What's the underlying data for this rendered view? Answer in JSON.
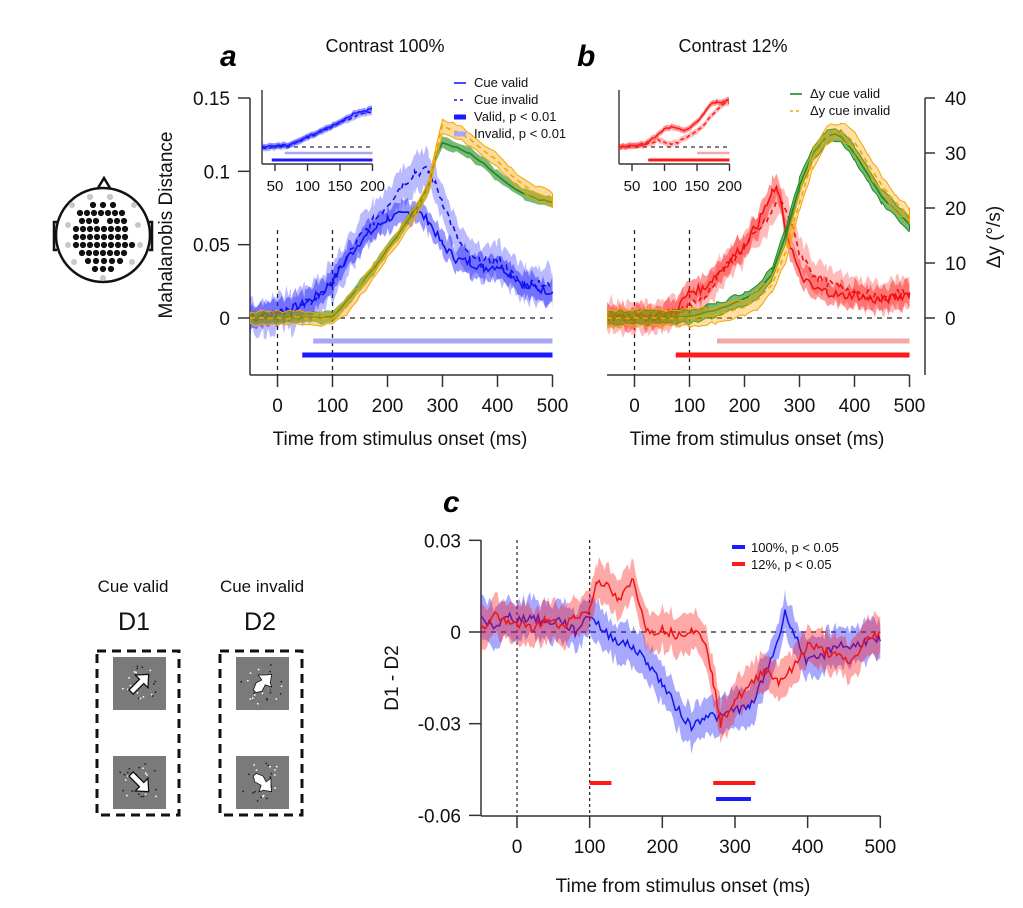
{
  "figure": {
    "panel_letters": [
      "a",
      "b",
      "c"
    ],
    "stimulus_schematic": {
      "columns": [
        {
          "condition": "Cue valid",
          "label": "D1"
        },
        {
          "condition": "Cue invalid",
          "label": "D2"
        }
      ]
    },
    "head_icon": "eeg-electrode-montage-icon"
  },
  "colors": {
    "valid_100": "#1a1aff",
    "invalid_100_sig": "#a7a7f5",
    "valid_12": "#ff1a1a",
    "invalid_12_sig": "#f5a7a7",
    "dy_valid": "#1e8a1e",
    "dy_invalid": "#f5a500"
  },
  "chart_data": [
    {
      "panel": "a",
      "type": "line",
      "title": "Contrast 100%",
      "xlabel": "Time from stimulus onset (ms)",
      "ylabel": "Mahalanobis Distance",
      "ylabel_right": "",
      "xlim": [
        -50,
        500
      ],
      "ylim": [
        -0.08,
        0.15
      ],
      "xticks": [
        0,
        100,
        200,
        300,
        400,
        500
      ],
      "xtick_labels": [
        "0",
        "100",
        "200",
        "300",
        "400",
        "500"
      ],
      "yticks": [
        0,
        0.05,
        0.1,
        0.15
      ],
      "ytick_labels": [
        "0",
        "0.05",
        "0.1",
        "0.15"
      ],
      "vlines": [
        0,
        100
      ],
      "hline": 0,
      "legend": [
        {
          "label": "Cue valid",
          "style": "solid"
        },
        {
          "label": "Cue invalid",
          "style": "dashed"
        },
        {
          "label": "Valid, p < 0.01",
          "style": "bar"
        },
        {
          "label": "Invalid, p < 0.01",
          "style": "bar-light"
        }
      ],
      "legend_position": "top-right",
      "series": [
        {
          "name": "Cue valid",
          "axis": "left",
          "x": [
            -50,
            -25,
            0,
            25,
            50,
            75,
            100,
            125,
            150,
            175,
            200,
            225,
            250,
            275,
            300,
            325,
            350,
            375,
            400,
            425,
            450,
            475,
            500
          ],
          "values": [
            0.001,
            0.002,
            0.004,
            0.006,
            0.01,
            0.016,
            0.025,
            0.04,
            0.052,
            0.06,
            0.068,
            0.07,
            0.074,
            0.066,
            0.05,
            0.04,
            0.038,
            0.034,
            0.036,
            0.03,
            0.022,
            0.02,
            0.018
          ]
        },
        {
          "name": "Cue invalid",
          "axis": "left",
          "x": [
            -50,
            -25,
            0,
            25,
            50,
            75,
            100,
            125,
            150,
            175,
            200,
            225,
            250,
            275,
            300,
            325,
            350,
            375,
            400,
            425,
            450,
            475,
            500
          ],
          "values": [
            0.001,
            0.002,
            0.003,
            0.005,
            0.009,
            0.015,
            0.024,
            0.04,
            0.055,
            0.066,
            0.078,
            0.09,
            0.1,
            0.1,
            0.08,
            0.055,
            0.04,
            0.038,
            0.04,
            0.03,
            0.022,
            0.025,
            0.02
          ]
        },
        {
          "name": "Δy cue valid",
          "axis": "right",
          "x": [
            -50,
            0,
            50,
            100,
            125,
            150,
            175,
            200,
            225,
            250,
            275,
            290,
            300,
            325,
            350,
            375,
            400,
            425,
            450,
            475,
            500
          ],
          "values": [
            0,
            0,
            0,
            0.2,
            3,
            6,
            9,
            12.5,
            16,
            19.5,
            24,
            30,
            32,
            31,
            30,
            28,
            26,
            24,
            22.5,
            21.5,
            21
          ]
        },
        {
          "name": "Δy cue invalid",
          "axis": "right",
          "x": [
            -50,
            0,
            50,
            100,
            125,
            150,
            175,
            200,
            225,
            250,
            275,
            290,
            300,
            325,
            350,
            375,
            400,
            425,
            450,
            475,
            500
          ],
          "values": [
            0,
            0,
            0,
            0,
            2,
            5,
            8.5,
            12,
            15.5,
            19,
            24,
            31,
            35,
            34,
            32.5,
            30.5,
            28.5,
            26,
            24,
            22.5,
            21.5
          ]
        }
      ],
      "significance_bars": [
        {
          "name": "Invalid, p < 0.01",
          "start": 65,
          "end": 500
        },
        {
          "name": "Valid, p < 0.01",
          "start": 45,
          "end": 500
        }
      ],
      "inset": {
        "xlim": [
          30,
          200
        ],
        "xticks": [
          50,
          100,
          150,
          200
        ],
        "xtick_labels": [
          "50",
          "100",
          "150",
          "200"
        ],
        "series": [
          {
            "name": "Cue valid",
            "x": [
              30,
              50,
              70,
              90,
              110,
              130,
              150,
              170,
              190,
              200
            ],
            "values": [
              0.3,
              0.32,
              0.33,
              0.42,
              0.52,
              0.62,
              0.72,
              0.85,
              0.9,
              0.95
            ]
          },
          {
            "name": "Cue invalid",
            "x": [
              30,
              50,
              70,
              90,
              110,
              130,
              150,
              170,
              190,
              200
            ],
            "values": [
              0.28,
              0.3,
              0.32,
              0.4,
              0.5,
              0.6,
              0.7,
              0.8,
              0.86,
              0.9
            ]
          }
        ],
        "significance_bars": [
          {
            "name": "Invalid",
            "start": 65,
            "end": 200
          },
          {
            "name": "Valid",
            "start": 45,
            "end": 200
          }
        ]
      }
    },
    {
      "panel": "b",
      "type": "line",
      "title": "Contrast 12%",
      "xlabel": "Time from stimulus onset (ms)",
      "ylabel": "",
      "ylabel_right": "Δy (°/s)",
      "xlim": [
        -50,
        500
      ],
      "ylim_right": [
        -10,
        40
      ],
      "xticks": [
        0,
        100,
        200,
        300,
        400,
        500
      ],
      "xtick_labels": [
        "0",
        "100",
        "200",
        "300",
        "400",
        "500"
      ],
      "yticks_right": [
        0,
        10,
        20,
        30,
        40
      ],
      "ytick_labels_right": [
        "0",
        "10",
        "20",
        "30",
        "40"
      ],
      "vlines": [
        0,
        100
      ],
      "hline": 0,
      "legend": [
        {
          "label": "Δy cue valid",
          "style": "solid"
        },
        {
          "label": "Δy cue invalid",
          "style": "dashed"
        }
      ],
      "legend_position": "top-right",
      "series": [
        {
          "name": "Cue valid",
          "axis": "left",
          "x": [
            -50,
            -25,
            0,
            25,
            50,
            75,
            100,
            125,
            150,
            175,
            200,
            225,
            250,
            260,
            275,
            300,
            325,
            350,
            375,
            400,
            425,
            450,
            475,
            500
          ],
          "values": [
            0.001,
            0.002,
            0.0,
            0.001,
            0.001,
            0.005,
            0.018,
            0.02,
            0.03,
            0.04,
            0.05,
            0.065,
            0.085,
            0.088,
            0.06,
            0.03,
            0.02,
            0.018,
            0.015,
            0.016,
            0.013,
            0.012,
            0.014,
            0.017
          ]
        },
        {
          "name": "Cue invalid",
          "axis": "left",
          "x": [
            -50,
            -25,
            0,
            25,
            50,
            75,
            100,
            125,
            150,
            175,
            200,
            225,
            250,
            260,
            275,
            300,
            325,
            350,
            375,
            400,
            425,
            450,
            475,
            500
          ],
          "values": [
            0.001,
            0.001,
            0.0,
            0.001,
            0.001,
            0.004,
            0.01,
            0.012,
            0.028,
            0.038,
            0.048,
            0.06,
            0.072,
            0.08,
            0.075,
            0.045,
            0.03,
            0.024,
            0.02,
            0.02,
            0.016,
            0.013,
            0.016,
            0.018
          ]
        },
        {
          "name": "Δy cue valid",
          "axis": "right",
          "x": [
            -50,
            0,
            50,
            100,
            150,
            200,
            225,
            250,
            275,
            300,
            325,
            350,
            365,
            375,
            400,
            425,
            450,
            475,
            500
          ],
          "values": [
            0,
            0,
            0,
            0.3,
            1.5,
            3.5,
            5,
            8,
            15,
            24,
            30,
            33,
            33.5,
            33,
            30,
            26,
            22,
            19.5,
            17
          ]
        },
        {
          "name": "Δy cue invalid",
          "axis": "right",
          "x": [
            -50,
            0,
            50,
            100,
            150,
            200,
            225,
            250,
            275,
            300,
            325,
            350,
            365,
            375,
            400,
            425,
            450,
            475,
            500
          ],
          "values": [
            0,
            0,
            0,
            0,
            0.6,
            2,
            3.5,
            6,
            12,
            21,
            29,
            33,
            34,
            34,
            32,
            28,
            24,
            21,
            18.5
          ]
        }
      ],
      "significance_bars": [
        {
          "name": "Invalid, p < 0.01",
          "start": 150,
          "end": 500
        },
        {
          "name": "Valid, p < 0.01",
          "start": 75,
          "end": 500
        }
      ],
      "inset": {
        "xlim": [
          30,
          200
        ],
        "xticks": [
          50,
          100,
          150,
          200
        ],
        "xtick_labels": [
          "50",
          "100",
          "150",
          "200"
        ],
        "series": [
          {
            "name": "Cue valid",
            "x": [
              30,
              50,
              70,
              90,
              100,
              110,
              120,
              130,
              140,
              150,
              160,
              170,
              180,
              190,
              200
            ],
            "values": [
              0.3,
              0.33,
              0.35,
              0.5,
              0.6,
              0.63,
              0.6,
              0.58,
              0.62,
              0.72,
              0.85,
              1.0,
              1.05,
              1.05,
              1.1
            ]
          },
          {
            "name": "Cue invalid",
            "x": [
              30,
              50,
              70,
              90,
              100,
              110,
              120,
              130,
              140,
              150,
              160,
              170,
              180,
              190,
              200
            ],
            "values": [
              0.3,
              0.32,
              0.33,
              0.42,
              0.38,
              0.35,
              0.37,
              0.45,
              0.5,
              0.56,
              0.65,
              0.8,
              0.92,
              1.0,
              1.05
            ]
          }
        ],
        "significance_bars": [
          {
            "name": "Invalid",
            "start": 150,
            "end": 200
          },
          {
            "name": "Valid",
            "start": 75,
            "end": 200
          }
        ]
      }
    },
    {
      "panel": "c",
      "type": "line",
      "title": "",
      "xlabel": "Time from stimulus onset (ms)",
      "ylabel": "D1 - D2",
      "xlim": [
        -50,
        500
      ],
      "ylim": [
        -0.06,
        0.03
      ],
      "xticks": [
        0,
        100,
        200,
        300,
        400,
        500
      ],
      "xtick_labels": [
        "0",
        "100",
        "200",
        "300",
        "400",
        "500"
      ],
      "yticks": [
        -0.06,
        -0.03,
        0,
        0.03
      ],
      "ytick_labels": [
        "-0.06",
        "-0.03",
        "0",
        "0.03"
      ],
      "vlines": [
        0,
        100
      ],
      "hline": 0,
      "legend": [
        {
          "label": "100%, p < 0.05"
        },
        {
          "label": "12%, p < 0.05"
        }
      ],
      "legend_position": "top-right",
      "series": [
        {
          "name": "100%",
          "x": [
            -50,
            -30,
            -10,
            0,
            20,
            40,
            60,
            80,
            100,
            120,
            140,
            160,
            180,
            200,
            220,
            240,
            260,
            280,
            300,
            320,
            340,
            360,
            370,
            380,
            400,
            420,
            440,
            460,
            480,
            500
          ],
          "values": [
            0.004,
            0.002,
            0.005,
            0.004,
            0.005,
            0.003,
            0.004,
            0.0,
            0.006,
            0.0,
            -0.003,
            -0.005,
            -0.01,
            -0.017,
            -0.025,
            -0.031,
            -0.027,
            -0.028,
            -0.025,
            -0.025,
            -0.015,
            -0.002,
            0.007,
            0.0,
            -0.01,
            -0.008,
            -0.004,
            -0.005,
            -0.003,
            -0.003
          ]
        },
        {
          "name": "12%",
          "x": [
            -50,
            -30,
            -10,
            0,
            20,
            40,
            60,
            80,
            100,
            110,
            120,
            140,
            160,
            180,
            200,
            220,
            240,
            260,
            270,
            280,
            300,
            320,
            340,
            360,
            380,
            400,
            420,
            440,
            460,
            480,
            500
          ],
          "values": [
            0.0,
            0.006,
            0.002,
            0.003,
            0.001,
            0.004,
            0.002,
            0.005,
            0.007,
            0.017,
            0.016,
            0.01,
            0.017,
            0.0,
            0.001,
            -0.001,
            0.001,
            -0.003,
            -0.016,
            -0.03,
            -0.022,
            -0.018,
            -0.012,
            -0.016,
            -0.012,
            -0.004,
            -0.006,
            -0.008,
            -0.01,
            -0.003,
            0.0
          ]
        }
      ],
      "significance_bars": [
        {
          "name": "12%, p < 0.05",
          "start": 100,
          "end": 130
        },
        {
          "name": "12%, p < 0.05",
          "start": 270,
          "end": 328
        },
        {
          "name": "100%, p < 0.05",
          "start": 274,
          "end": 322
        }
      ]
    }
  ]
}
